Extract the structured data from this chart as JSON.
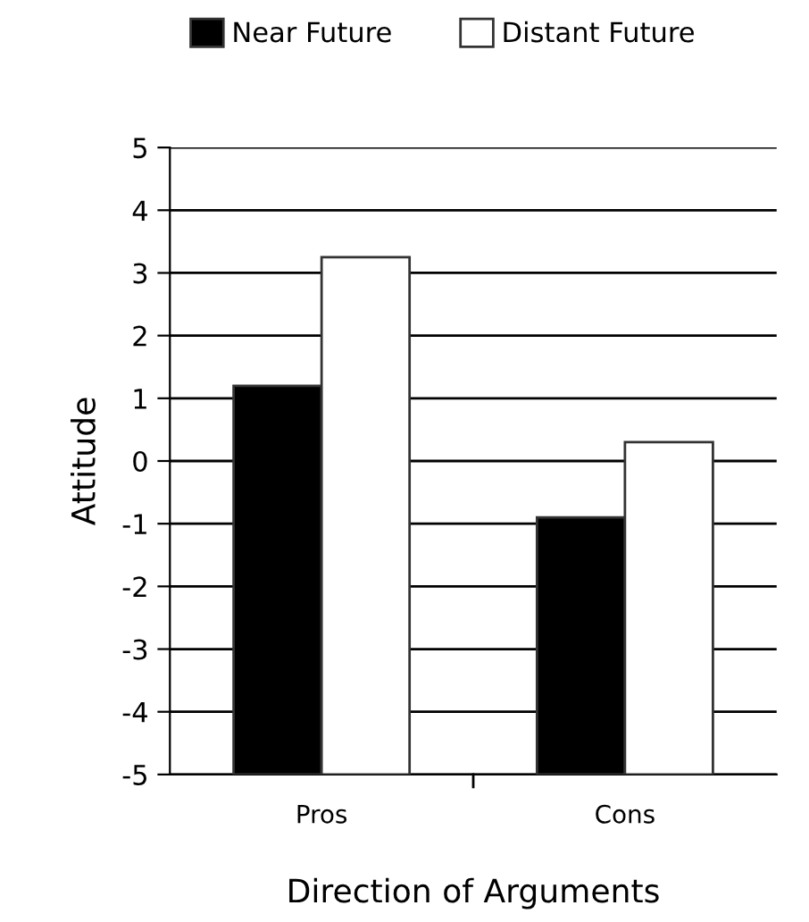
{
  "chart_data": {
    "type": "bar",
    "xlabel": "Direction of Arguments",
    "ylabel": "Attitude",
    "categories": [
      "Pros",
      "Cons"
    ],
    "series": [
      {
        "name": "Near Future",
        "color": "#000000",
        "base": [
          -5,
          -5
        ],
        "values": [
          6.2,
          4.1
        ]
      },
      {
        "name": "Distant Future",
        "color": "#ffffff",
        "base": [
          -5,
          -5
        ],
        "values": [
          8.25,
          5.3
        ]
      }
    ],
    "ylim": [
      -5,
      5
    ],
    "yticks": [
      -5,
      -4,
      -3,
      -2,
      -1,
      0,
      1,
      2,
      3,
      4,
      5
    ],
    "grid": "y",
    "legend": "top"
  }
}
